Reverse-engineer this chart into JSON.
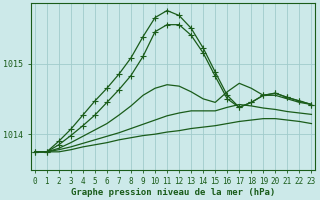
{
  "title": "Graphe pression niveau de la mer (hPa)",
  "background_color": "#cce9e9",
  "plot_bg_color": "#cce9e9",
  "grid_color": "#a0cccc",
  "line_color": "#1a5c1a",
  "x_labels": [
    "0",
    "1",
    "2",
    "3",
    "4",
    "5",
    "6",
    "7",
    "8",
    "9",
    "10",
    "11",
    "12",
    "13",
    "14",
    "15",
    "16",
    "17",
    "18",
    "19",
    "20",
    "21",
    "22",
    "23"
  ],
  "yticks": [
    1014,
    1015
  ],
  "ylim": [
    1013.5,
    1015.85
  ],
  "xlim": [
    -0.3,
    23.3
  ],
  "series": [
    {
      "y": [
        1013.75,
        1013.75,
        1013.75,
        1013.78,
        1013.82,
        1013.85,
        1013.88,
        1013.92,
        1013.95,
        1013.98,
        1014.0,
        1014.03,
        1014.05,
        1014.08,
        1014.1,
        1014.12,
        1014.15,
        1014.18,
        1014.2,
        1014.22,
        1014.22,
        1014.2,
        1014.18,
        1014.15
      ],
      "marker": false,
      "lw": 0.9
    },
    {
      "y": [
        1013.75,
        1013.75,
        1013.78,
        1013.82,
        1013.87,
        1013.92,
        1013.97,
        1014.02,
        1014.08,
        1014.14,
        1014.2,
        1014.26,
        1014.3,
        1014.33,
        1014.33,
        1014.33,
        1014.38,
        1014.42,
        1014.4,
        1014.37,
        1014.35,
        1014.32,
        1014.3,
        1014.28
      ],
      "marker": false,
      "lw": 0.9
    },
    {
      "y": [
        1013.75,
        1013.75,
        1013.8,
        1013.88,
        1013.97,
        1014.06,
        1014.15,
        1014.27,
        1014.4,
        1014.55,
        1014.65,
        1014.7,
        1014.68,
        1014.6,
        1014.5,
        1014.45,
        1014.6,
        1014.72,
        1014.65,
        1014.55,
        1014.55,
        1014.5,
        1014.45,
        1014.42
      ],
      "marker": false,
      "lw": 0.9
    },
    {
      "y": [
        1013.75,
        1013.75,
        1013.85,
        1013.98,
        1014.12,
        1014.27,
        1014.45,
        1014.63,
        1014.83,
        1015.1,
        1015.45,
        1015.55,
        1015.55,
        1015.4,
        1015.15,
        1014.82,
        1014.5,
        1014.38,
        1014.45,
        1014.55,
        1014.58,
        1014.52,
        1014.47,
        1014.42
      ],
      "marker": true,
      "lw": 0.9
    },
    {
      "y": [
        1013.75,
        1013.75,
        1013.9,
        1014.07,
        1014.27,
        1014.47,
        1014.65,
        1014.85,
        1015.08,
        1015.38,
        1015.65,
        1015.75,
        1015.68,
        1015.5,
        1015.22,
        1014.88,
        1014.55,
        1014.38,
        1014.45,
        1014.55,
        1014.58,
        1014.52,
        1014.47,
        1014.42
      ],
      "marker": true,
      "lw": 0.9
    }
  ],
  "marker_style": "+",
  "markersize": 4,
  "title_fontsize": 6.5,
  "tick_fontsize": 5.5
}
